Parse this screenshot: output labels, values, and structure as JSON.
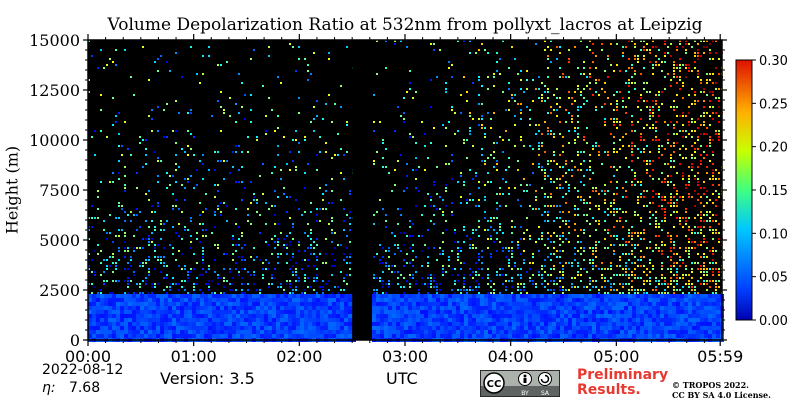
{
  "chart_data": {
    "type": "heatmap",
    "title": "Volume Depolarization Ratio at 532nm from pollyxt_lacros at Leipzig",
    "ylabel": "Height (m)",
    "xlabel": "UTC",
    "ylim": [
      0,
      15000
    ],
    "yticks": [
      0,
      2500,
      5000,
      7500,
      10000,
      12500,
      15000
    ],
    "ytick_labels": [
      "0",
      "2500",
      "5000",
      "7500",
      "10000",
      "12500",
      "15000"
    ],
    "xtick_labels": [
      "00:00",
      "01:00",
      "02:00",
      "03:00",
      "04:00",
      "05:00",
      "05:59"
    ],
    "xtick_hours": [
      0,
      1,
      2,
      3,
      4,
      5,
      5.983
    ],
    "x_range_hours": [
      0,
      6
    ],
    "colorbar": {
      "min": 0.0,
      "max": 0.3,
      "ticks": [
        0.0,
        0.05,
        0.1,
        0.15,
        0.2,
        0.25,
        0.3
      ],
      "tick_labels": [
        "0.00",
        "0.05",
        "0.10",
        "0.15",
        "0.20",
        "0.25",
        "0.30"
      ],
      "colormap": "jet"
    },
    "no_data_gap_hours": [
      2.5,
      2.67
    ],
    "boundary_layer_top_m": 2300,
    "background_color": "#000000"
  },
  "footer": {
    "date": "2022-08-12",
    "eta_symbol": "η:",
    "eta_value": "7.68",
    "version": "Version: 3.5",
    "preliminary_line1": "Preliminary",
    "preliminary_line2": "Results.",
    "copyright_line1": "© TROPOS 2022.",
    "copyright_line2": "CC BY SA 4.0 License.",
    "license_badge": [
      "CC",
      "BY",
      "SA"
    ]
  },
  "colors": {
    "preliminary": "#e8382f",
    "axis": "#000000"
  }
}
